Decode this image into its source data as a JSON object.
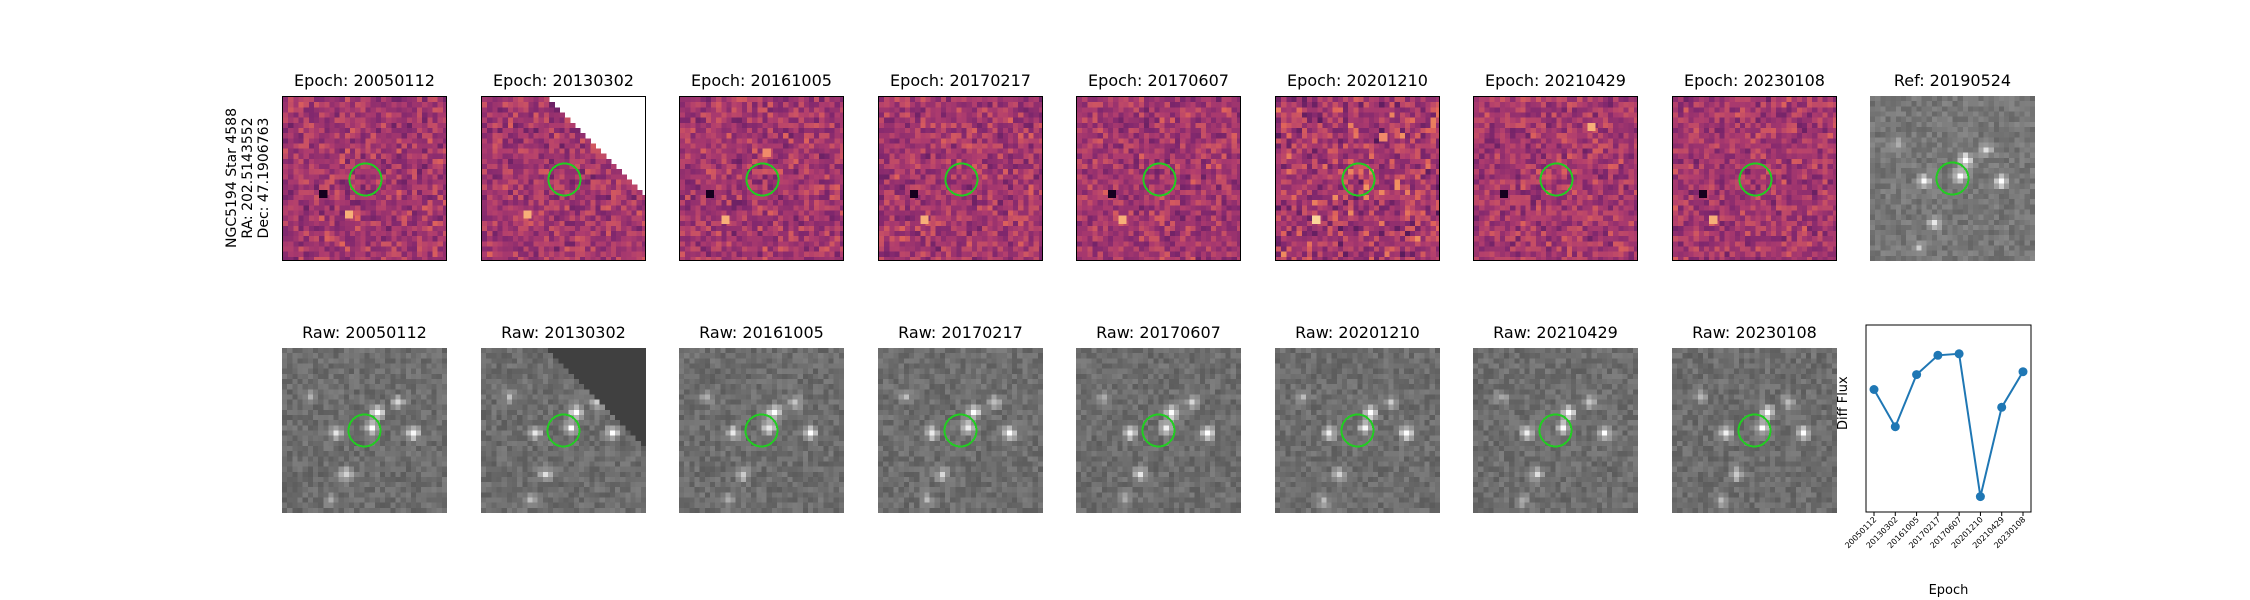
{
  "target": {
    "name": "NGC5194 Star 4588",
    "ra_label": "RA: 202.5143552",
    "dec_label": "Dec: 47.1906763"
  },
  "difference_panels": [
    {
      "title": "Epoch: 20050112"
    },
    {
      "title": "Epoch: 20130302"
    },
    {
      "title": "Epoch: 20161005"
    },
    {
      "title": "Epoch: 20170217"
    },
    {
      "title": "Epoch: 20170607"
    },
    {
      "title": "Epoch: 20201210"
    },
    {
      "title": "Epoch: 20210429"
    },
    {
      "title": "Epoch: 20230108"
    }
  ],
  "reference_panel": {
    "title": "Ref: 20190524"
  },
  "raw_panels": [
    {
      "title": "Raw: 20050112"
    },
    {
      "title": "Raw: 20130302"
    },
    {
      "title": "Raw: 20161005"
    },
    {
      "title": "Raw: 20170217"
    },
    {
      "title": "Raw: 20170607"
    },
    {
      "title": "Raw: 20201210"
    },
    {
      "title": "Raw: 20210429"
    },
    {
      "title": "Raw: 20230108"
    }
  ],
  "colors": {
    "aperture": "#22cc22",
    "series": "#1f77b4",
    "diff_cmap_mid": "#a8406f",
    "raw_gray": "#7a7a7a"
  },
  "chart_data": {
    "type": "line",
    "xlabel": "Epoch",
    "ylabel": "Diff Flux",
    "categories": [
      "20050112",
      "20130302",
      "20161005",
      "20170217",
      "20170607",
      "20201210",
      "20210429",
      "20230108"
    ],
    "values": [
      0.62,
      0.37,
      0.72,
      0.85,
      0.86,
      -0.1,
      0.5,
      0.74
    ],
    "ylim": [
      -0.15,
      1.0
    ],
    "grid": false,
    "marker": "circle"
  }
}
